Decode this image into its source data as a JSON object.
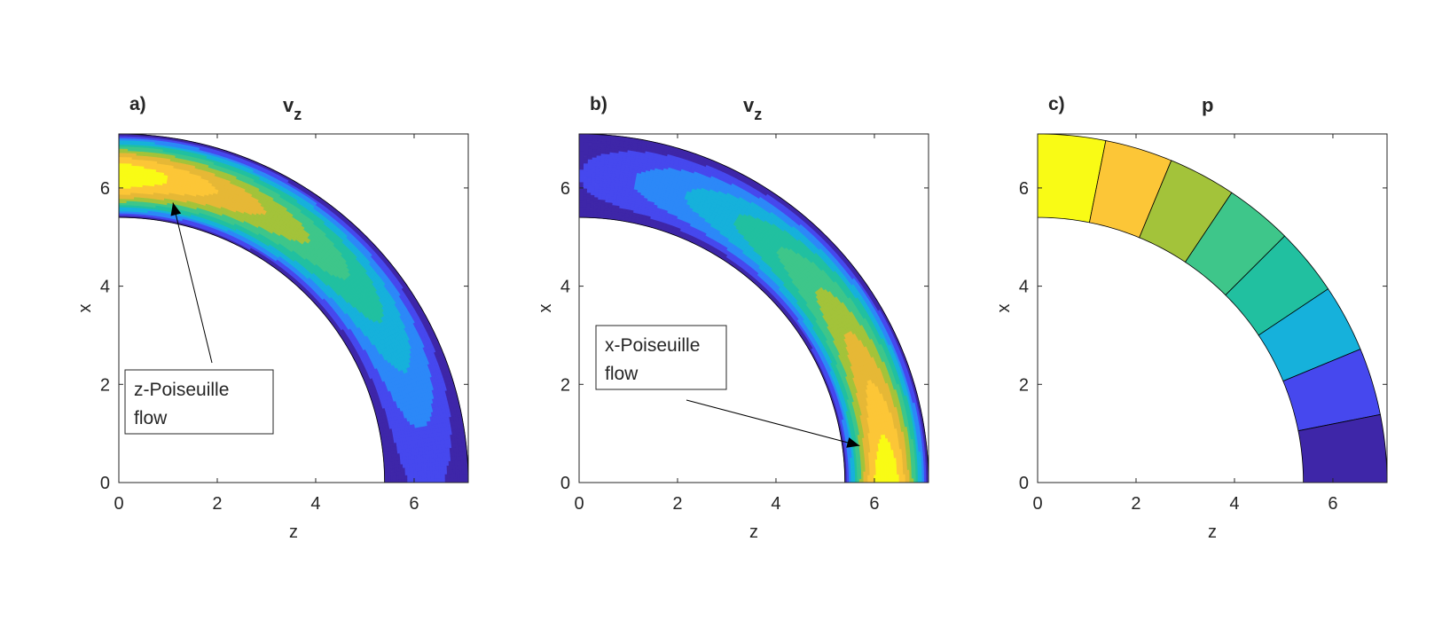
{
  "colors": {
    "axis": "#262626",
    "parula": [
      "#3e26a8",
      "#4648ee",
      "#2c88f8",
      "#16b1db",
      "#21c0a0",
      "#3ec68a",
      "#a3c33a",
      "#e6b836",
      "#fcc637",
      "#f9fb15"
    ]
  },
  "chart_data": [
    {
      "type": "heatmap",
      "panel": "a)",
      "title_main": "v",
      "title_sub": "z",
      "xlabel": "z",
      "ylabel": "x",
      "xlim": [
        0,
        7.1
      ],
      "ylim": [
        0,
        7.1
      ],
      "xticks": [
        "0",
        "2",
        "4",
        "6"
      ],
      "yticks": [
        "0",
        "2",
        "4",
        "6"
      ],
      "domain": {
        "shape": "quarter annulus",
        "inner_radius": 5.4,
        "outer_radius": 7.1
      },
      "field": "poiseuille-z",
      "levels": 10,
      "annotation": {
        "lines": [
          "z-Poiseuille",
          "flow"
        ],
        "arrow_to": [
          1.1,
          5.7
        ]
      }
    },
    {
      "type": "heatmap",
      "panel": "b)",
      "title_main": "v",
      "title_sub": "z",
      "xlabel": "z",
      "ylabel": "x",
      "xlim": [
        0,
        7.1
      ],
      "ylim": [
        0,
        7.1
      ],
      "xticks": [
        "0",
        "2",
        "4",
        "6"
      ],
      "yticks": [
        "0",
        "2",
        "4",
        "6"
      ],
      "domain": {
        "shape": "quarter annulus",
        "inner_radius": 5.4,
        "outer_radius": 7.1
      },
      "field": "poiseuille-x",
      "levels": 10,
      "annotation": {
        "lines": [
          "x-Poiseuille",
          "flow"
        ],
        "arrow_to": [
          5.7,
          0.75
        ]
      }
    },
    {
      "type": "heatmap",
      "panel": "c)",
      "title_main": "p",
      "title_sub": "",
      "xlabel": "z",
      "ylabel": "x",
      "xlim": [
        0,
        7.1
      ],
      "ylim": [
        0,
        7.1
      ],
      "xticks": [
        "0",
        "2",
        "4",
        "6"
      ],
      "yticks": [
        "0",
        "2",
        "4",
        "6"
      ],
      "domain": {
        "shape": "quarter annulus",
        "inner_radius": 5.4,
        "outer_radius": 7.1
      },
      "field": "angular-bands",
      "levels": 8
    }
  ]
}
